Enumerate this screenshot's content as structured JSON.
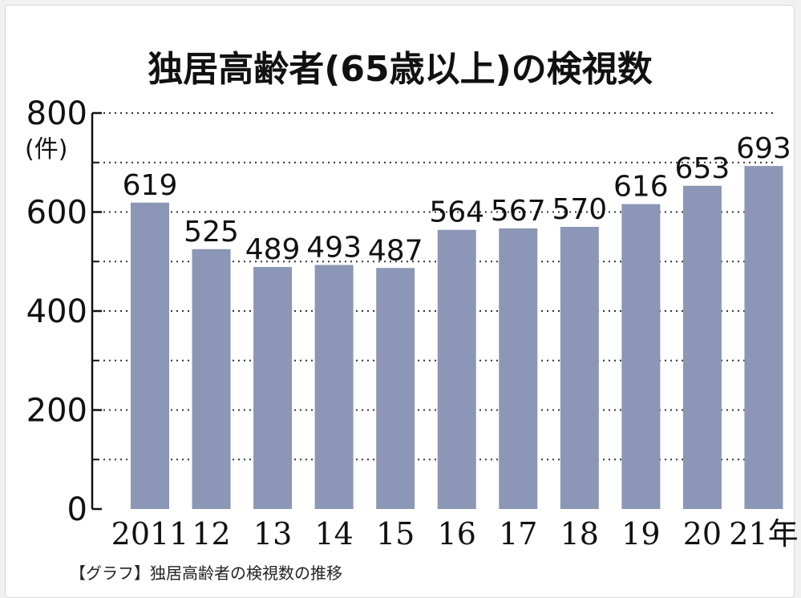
{
  "caption": "【グラフ】独居高齢者の検視数の推移",
  "chart_data": {
    "type": "bar",
    "title": "独居高齢者(65歳以上)の検視数",
    "ylabel": "(件)",
    "xlabel": "",
    "categories": [
      "2011",
      "12",
      "13",
      "14",
      "15",
      "16",
      "17",
      "18",
      "19",
      "20",
      "21年"
    ],
    "values": [
      619,
      525,
      489,
      493,
      487,
      564,
      567,
      570,
      616,
      653,
      693
    ],
    "ylim": [
      0,
      800
    ],
    "yticks": [
      0,
      200,
      400,
      600,
      800
    ],
    "grid": true,
    "bar_color": "#8c96b6"
  }
}
